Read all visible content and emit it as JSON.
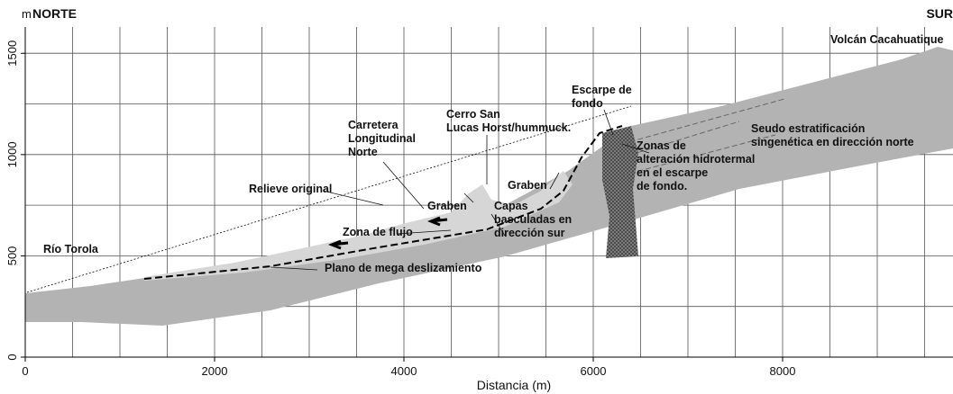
{
  "axes": {
    "x_label": "Distancia (m)",
    "y_unit": "m",
    "xlim": [
      0,
      9800
    ],
    "ylim": [
      0,
      1630
    ],
    "xticks": [
      0,
      2000,
      4000,
      6000,
      8000
    ],
    "yticks": [
      0,
      500,
      1000,
      1500
    ]
  },
  "header": {
    "left": "NORTE",
    "right": "SUR"
  },
  "labels": [
    {
      "lines": [
        "Volcán Cacahuatique"
      ]
    },
    {
      "lines": [
        "Escarpe de",
        "fondo"
      ]
    },
    {
      "lines": [
        "Cerro San",
        "Lucas Horst/hummuck."
      ]
    },
    {
      "lines": [
        "Carretera",
        "Longitudinal",
        "Norte"
      ]
    },
    {
      "lines": [
        "Seudo estratificación",
        "singenética en dirección norte"
      ]
    },
    {
      "lines": [
        "Relieve original"
      ]
    },
    {
      "lines": [
        "Graben"
      ]
    },
    {
      "lines": [
        "Zonas de",
        "alteración hidrotermal",
        "en el escarpe",
        "de fondo."
      ]
    },
    {
      "lines": [
        "Graben"
      ]
    },
    {
      "lines": [
        "Capas",
        "basculadas en",
        "dirección sur"
      ]
    },
    {
      "lines": [
        "Zona de flujo"
      ]
    },
    {
      "lines": [
        "Río Torola"
      ]
    },
    {
      "lines": [
        "Plano de mega deslizamiento"
      ]
    }
  ]
}
